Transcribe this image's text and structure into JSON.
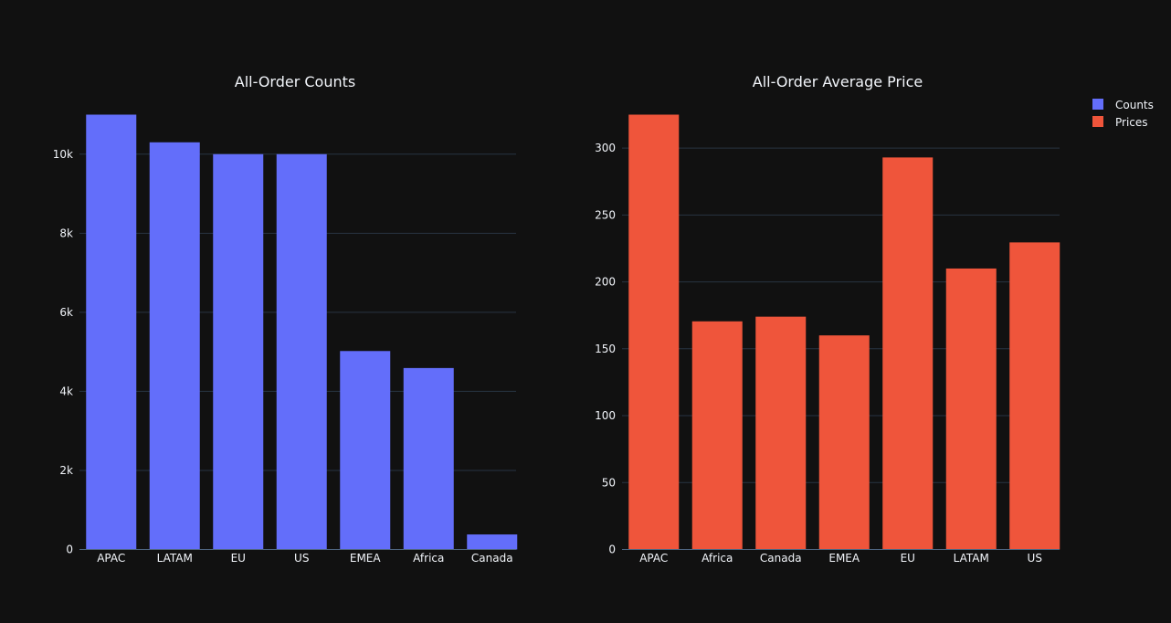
{
  "colors": {
    "background": "#111111",
    "counts": "#636efa",
    "prices": "#ef553b",
    "text": "#f2f5fa",
    "grid": "#283442"
  },
  "legend": {
    "placement": "top-right",
    "items": [
      {
        "label": "Counts",
        "color": "#636efa"
      },
      {
        "label": "Prices",
        "color": "#ef553b"
      }
    ]
  },
  "chart_data": [
    {
      "type": "bar",
      "title": "All-Order Counts",
      "series_name": "Counts",
      "categories": [
        "APAC",
        "LATAM",
        "EU",
        "US",
        "EMEA",
        "Africa",
        "Canada"
      ],
      "values": [
        11000,
        10300,
        10000,
        10000,
        5020,
        4590,
        380
      ],
      "ylim": [
        0,
        11000
      ],
      "yticks": [
        0,
        2000,
        4000,
        6000,
        8000,
        10000
      ],
      "ytick_labels": [
        "0",
        "2k",
        "4k",
        "6k",
        "8k",
        "10k"
      ],
      "grid": true,
      "color": "#636efa"
    },
    {
      "type": "bar",
      "title": "All-Order Average Price",
      "series_name": "Prices",
      "categories": [
        "APAC",
        "Africa",
        "Canada",
        "EMEA",
        "EU",
        "LATAM",
        "US"
      ],
      "values": [
        325,
        170.5,
        174,
        160,
        293,
        210,
        229.5
      ],
      "ylim": [
        0,
        325
      ],
      "yticks": [
        0,
        50,
        100,
        150,
        200,
        250,
        300
      ],
      "ytick_labels": [
        "0",
        "50",
        "100",
        "150",
        "200",
        "250",
        "300"
      ],
      "grid": true,
      "color": "#ef553b"
    }
  ]
}
